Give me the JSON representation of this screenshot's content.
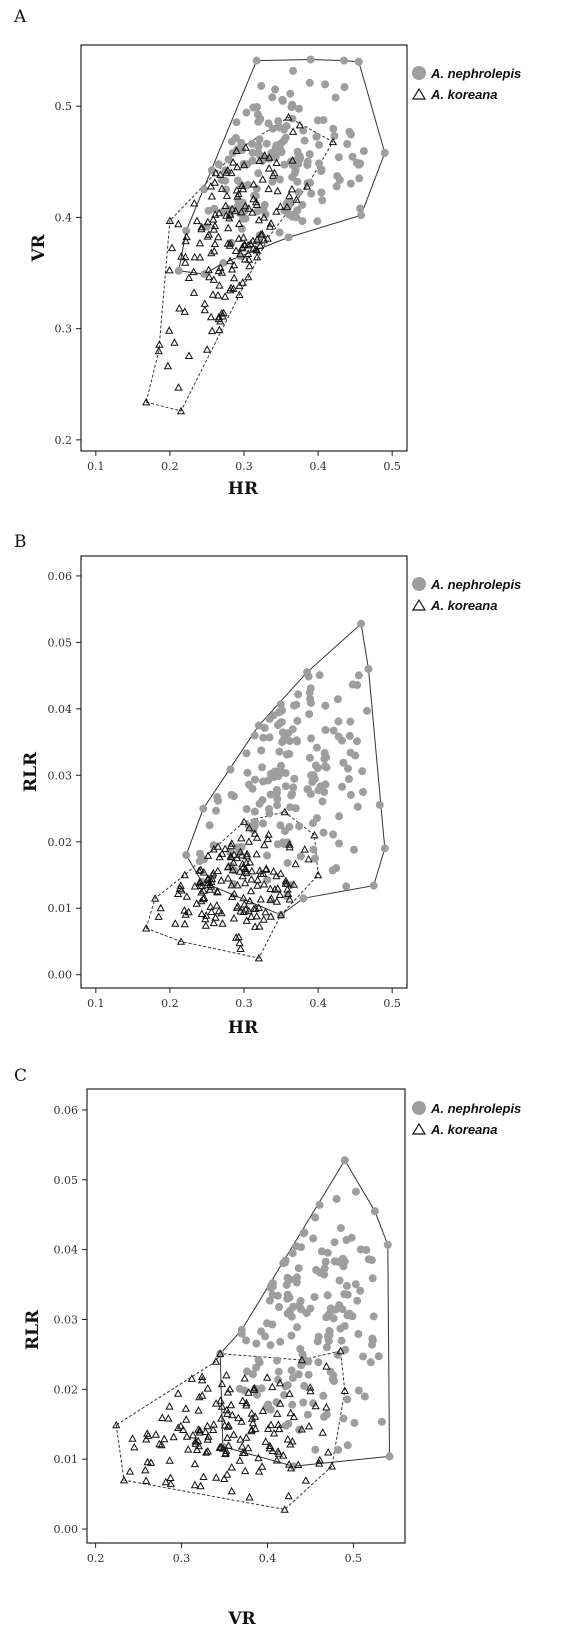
{
  "legend": {
    "nephrolepis": "A. nephrolepis",
    "koreana": "A. koreana"
  },
  "colors": {
    "nephrolepis": "#9e9e9e",
    "koreana": "#ffffff",
    "ink": "#111111"
  },
  "chart_data": [
    {
      "panel": "A",
      "type": "scatter",
      "xlabel": "HR",
      "ylabel": "VR",
      "xlim": [
        0.08,
        0.52
      ],
      "ylim": [
        0.19,
        0.555
      ],
      "xticks": [
        "0.1",
        "0.2",
        "0.3",
        "0.4",
        "0.5"
      ],
      "yticks": [
        "0.2",
        "0.3",
        "0.4",
        "0.5"
      ],
      "hull_nephrolepis": [
        [
          0.317,
          0.541
        ],
        [
          0.39,
          0.542
        ],
        [
          0.435,
          0.541
        ],
        [
          0.455,
          0.54
        ],
        [
          0.49,
          0.458
        ],
        [
          0.458,
          0.402
        ],
        [
          0.36,
          0.382
        ],
        [
          0.272,
          0.359
        ],
        [
          0.247,
          0.349
        ],
        [
          0.212,
          0.352
        ],
        [
          0.222,
          0.388
        ]
      ],
      "hull_koreana": [
        [
          0.168,
          0.234
        ],
        [
          0.215,
          0.226
        ],
        [
          0.332,
          0.381
        ],
        [
          0.385,
          0.428
        ],
        [
          0.42,
          0.468
        ],
        [
          0.36,
          0.49
        ],
        [
          0.29,
          0.46
        ],
        [
          0.262,
          0.44
        ],
        [
          0.2,
          0.397
        ],
        [
          0.185,
          0.28
        ]
      ]
    },
    {
      "panel": "B",
      "type": "scatter",
      "xlabel": "HR",
      "ylabel": "RLR",
      "xlim": [
        0.08,
        0.52
      ],
      "ylim": [
        -0.002,
        0.063
      ],
      "xticks": [
        "0.1",
        "0.2",
        "0.3",
        "0.4",
        "0.5"
      ],
      "yticks": [
        "0.00",
        "0.01",
        "0.02",
        "0.03",
        "0.04",
        "0.05",
        "0.06"
      ],
      "hull_nephrolepis": [
        [
          0.458,
          0.0528
        ],
        [
          0.468,
          0.046
        ],
        [
          0.49,
          0.019
        ],
        [
          0.475,
          0.0134
        ],
        [
          0.38,
          0.0115
        ],
        [
          0.35,
          0.009
        ],
        [
          0.243,
          0.014
        ],
        [
          0.222,
          0.018
        ],
        [
          0.245,
          0.025
        ],
        [
          0.32,
          0.0375
        ],
        [
          0.385,
          0.0455
        ]
      ],
      "hull_koreana": [
        [
          0.168,
          0.007
        ],
        [
          0.215,
          0.005
        ],
        [
          0.32,
          0.0025
        ],
        [
          0.35,
          0.009
        ],
        [
          0.4,
          0.015
        ],
        [
          0.395,
          0.021
        ],
        [
          0.355,
          0.0245
        ],
        [
          0.3,
          0.023
        ],
        [
          0.22,
          0.015
        ],
        [
          0.18,
          0.0115
        ]
      ]
    },
    {
      "panel": "C",
      "type": "scatter",
      "xlabel": "VR",
      "ylabel": "RLR",
      "xlim": [
        0.19,
        0.56
      ],
      "ylim": [
        -0.002,
        0.063
      ],
      "xticks": [
        "0.2",
        "0.3",
        "0.4",
        "0.5"
      ],
      "yticks": [
        "0.00",
        "0.01",
        "0.02",
        "0.03",
        "0.04",
        "0.05",
        "0.06"
      ],
      "hull_nephrolepis": [
        [
          0.49,
          0.0528
        ],
        [
          0.525,
          0.0455
        ],
        [
          0.54,
          0.0407
        ],
        [
          0.542,
          0.0104
        ],
        [
          0.43,
          0.009
        ],
        [
          0.348,
          0.0118
        ],
        [
          0.345,
          0.0251
        ],
        [
          0.37,
          0.0285
        ]
      ],
      "hull_koreana": [
        [
          0.224,
          0.0149
        ],
        [
          0.233,
          0.007
        ],
        [
          0.42,
          0.0028
        ],
        [
          0.475,
          0.009
        ],
        [
          0.49,
          0.0198
        ],
        [
          0.485,
          0.0255
        ],
        [
          0.44,
          0.0242
        ],
        [
          0.345,
          0.0251
        ],
        [
          0.34,
          0.024
        ]
      ]
    }
  ]
}
